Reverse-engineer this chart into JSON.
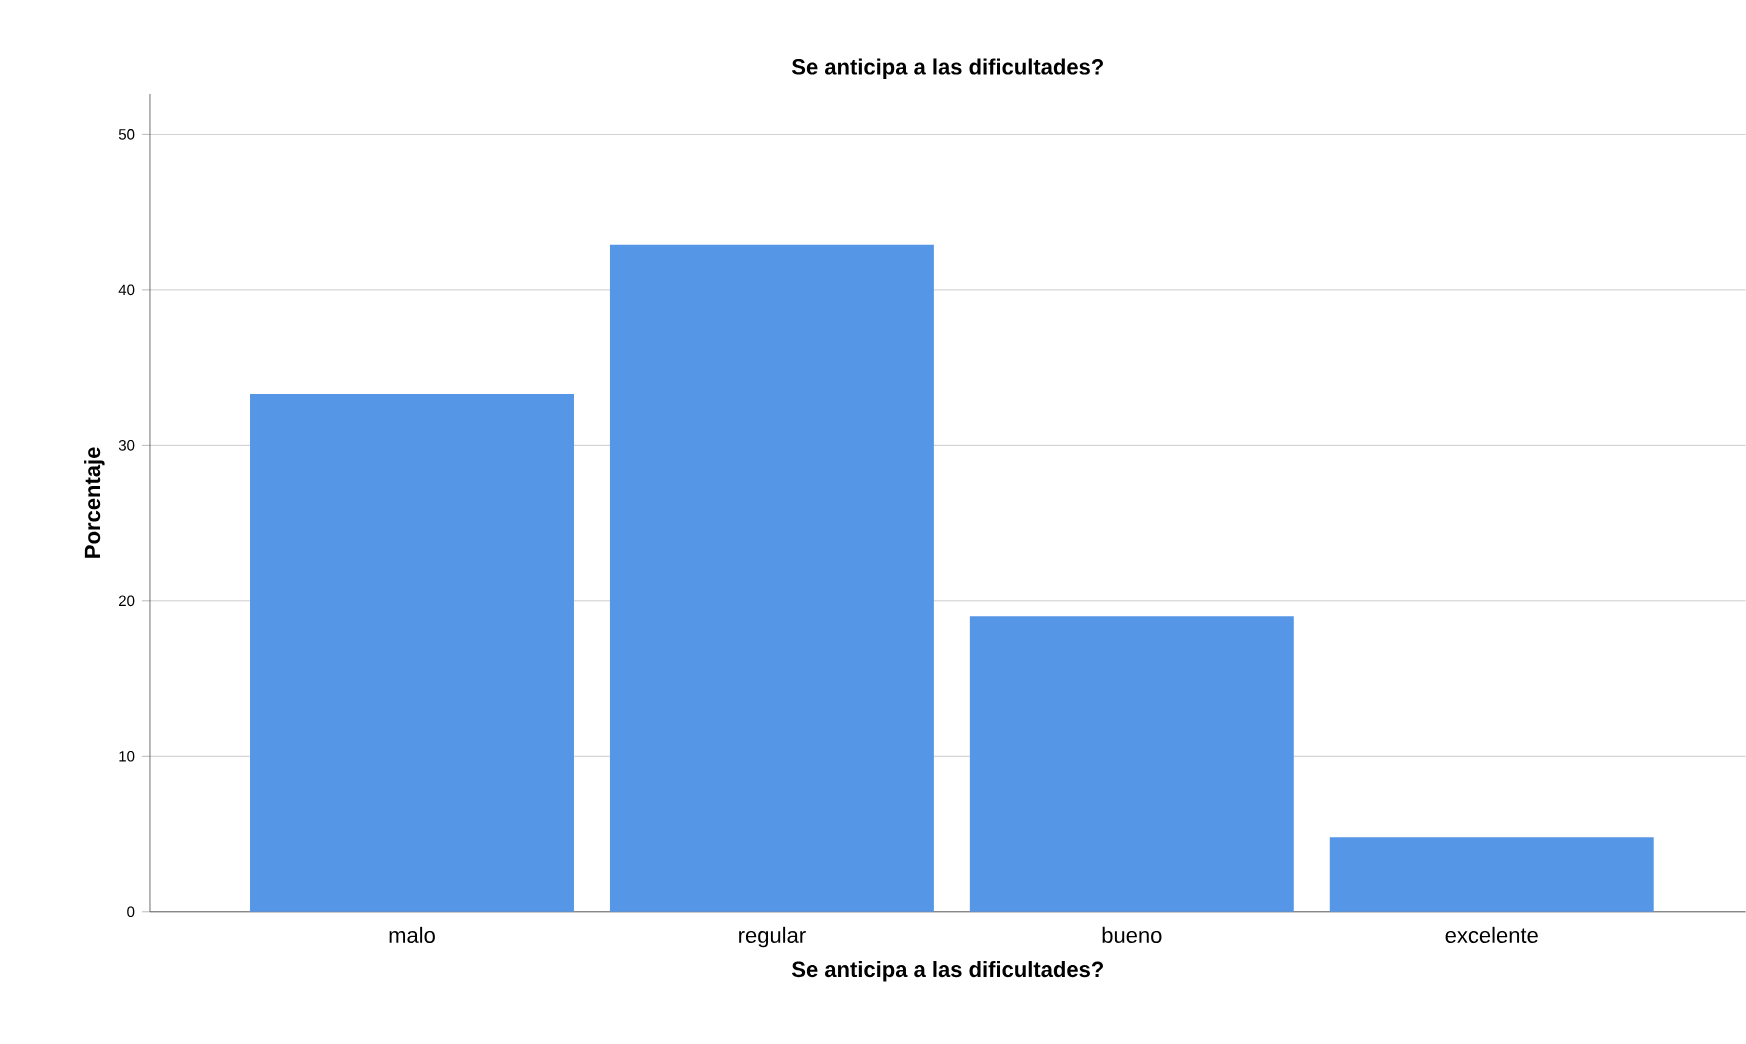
{
  "chart_data": {
    "type": "bar",
    "title": "Se anticipa a las dificultades?",
    "xlabel": "Se anticipa a las dificultades?",
    "ylabel": "Porcentaje",
    "categories": [
      "malo",
      "regular",
      "bueno",
      "excelente"
    ],
    "values": [
      33.3,
      42.9,
      19.0,
      4.8
    ],
    "color": "#5596e6",
    "ylim": [
      0,
      52.6
    ],
    "yticks": [
      0,
      10,
      20,
      30,
      40,
      50
    ],
    "grid": "y"
  }
}
